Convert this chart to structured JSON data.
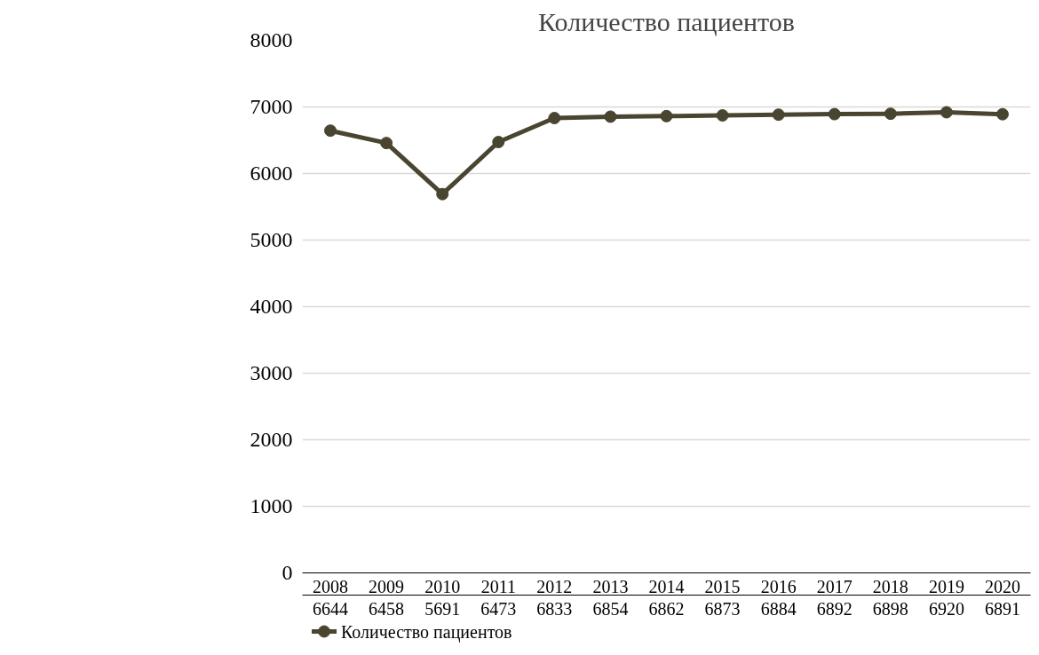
{
  "chart_data": {
    "type": "line",
    "title": "Количество пациентов",
    "categories": [
      "2008",
      "2009",
      "2010",
      "2011",
      "2012",
      "2013",
      "2014",
      "2015",
      "2016",
      "2017",
      "2018",
      "2019",
      "2020"
    ],
    "series": [
      {
        "name": "Количество пациентов",
        "color": "#4a4530",
        "values": [
          6644,
          6458,
          5691,
          6473,
          6833,
          6854,
          6862,
          6873,
          6884,
          6892,
          6898,
          6920,
          6891
        ]
      }
    ],
    "ylim": [
      0,
      8000
    ],
    "yticks": [
      0,
      1000,
      2000,
      3000,
      4000,
      5000,
      6000,
      7000,
      8000
    ],
    "grid": "y",
    "marker": "circle",
    "line_style": "solid",
    "legend": "bottom",
    "data_labels": true
  }
}
